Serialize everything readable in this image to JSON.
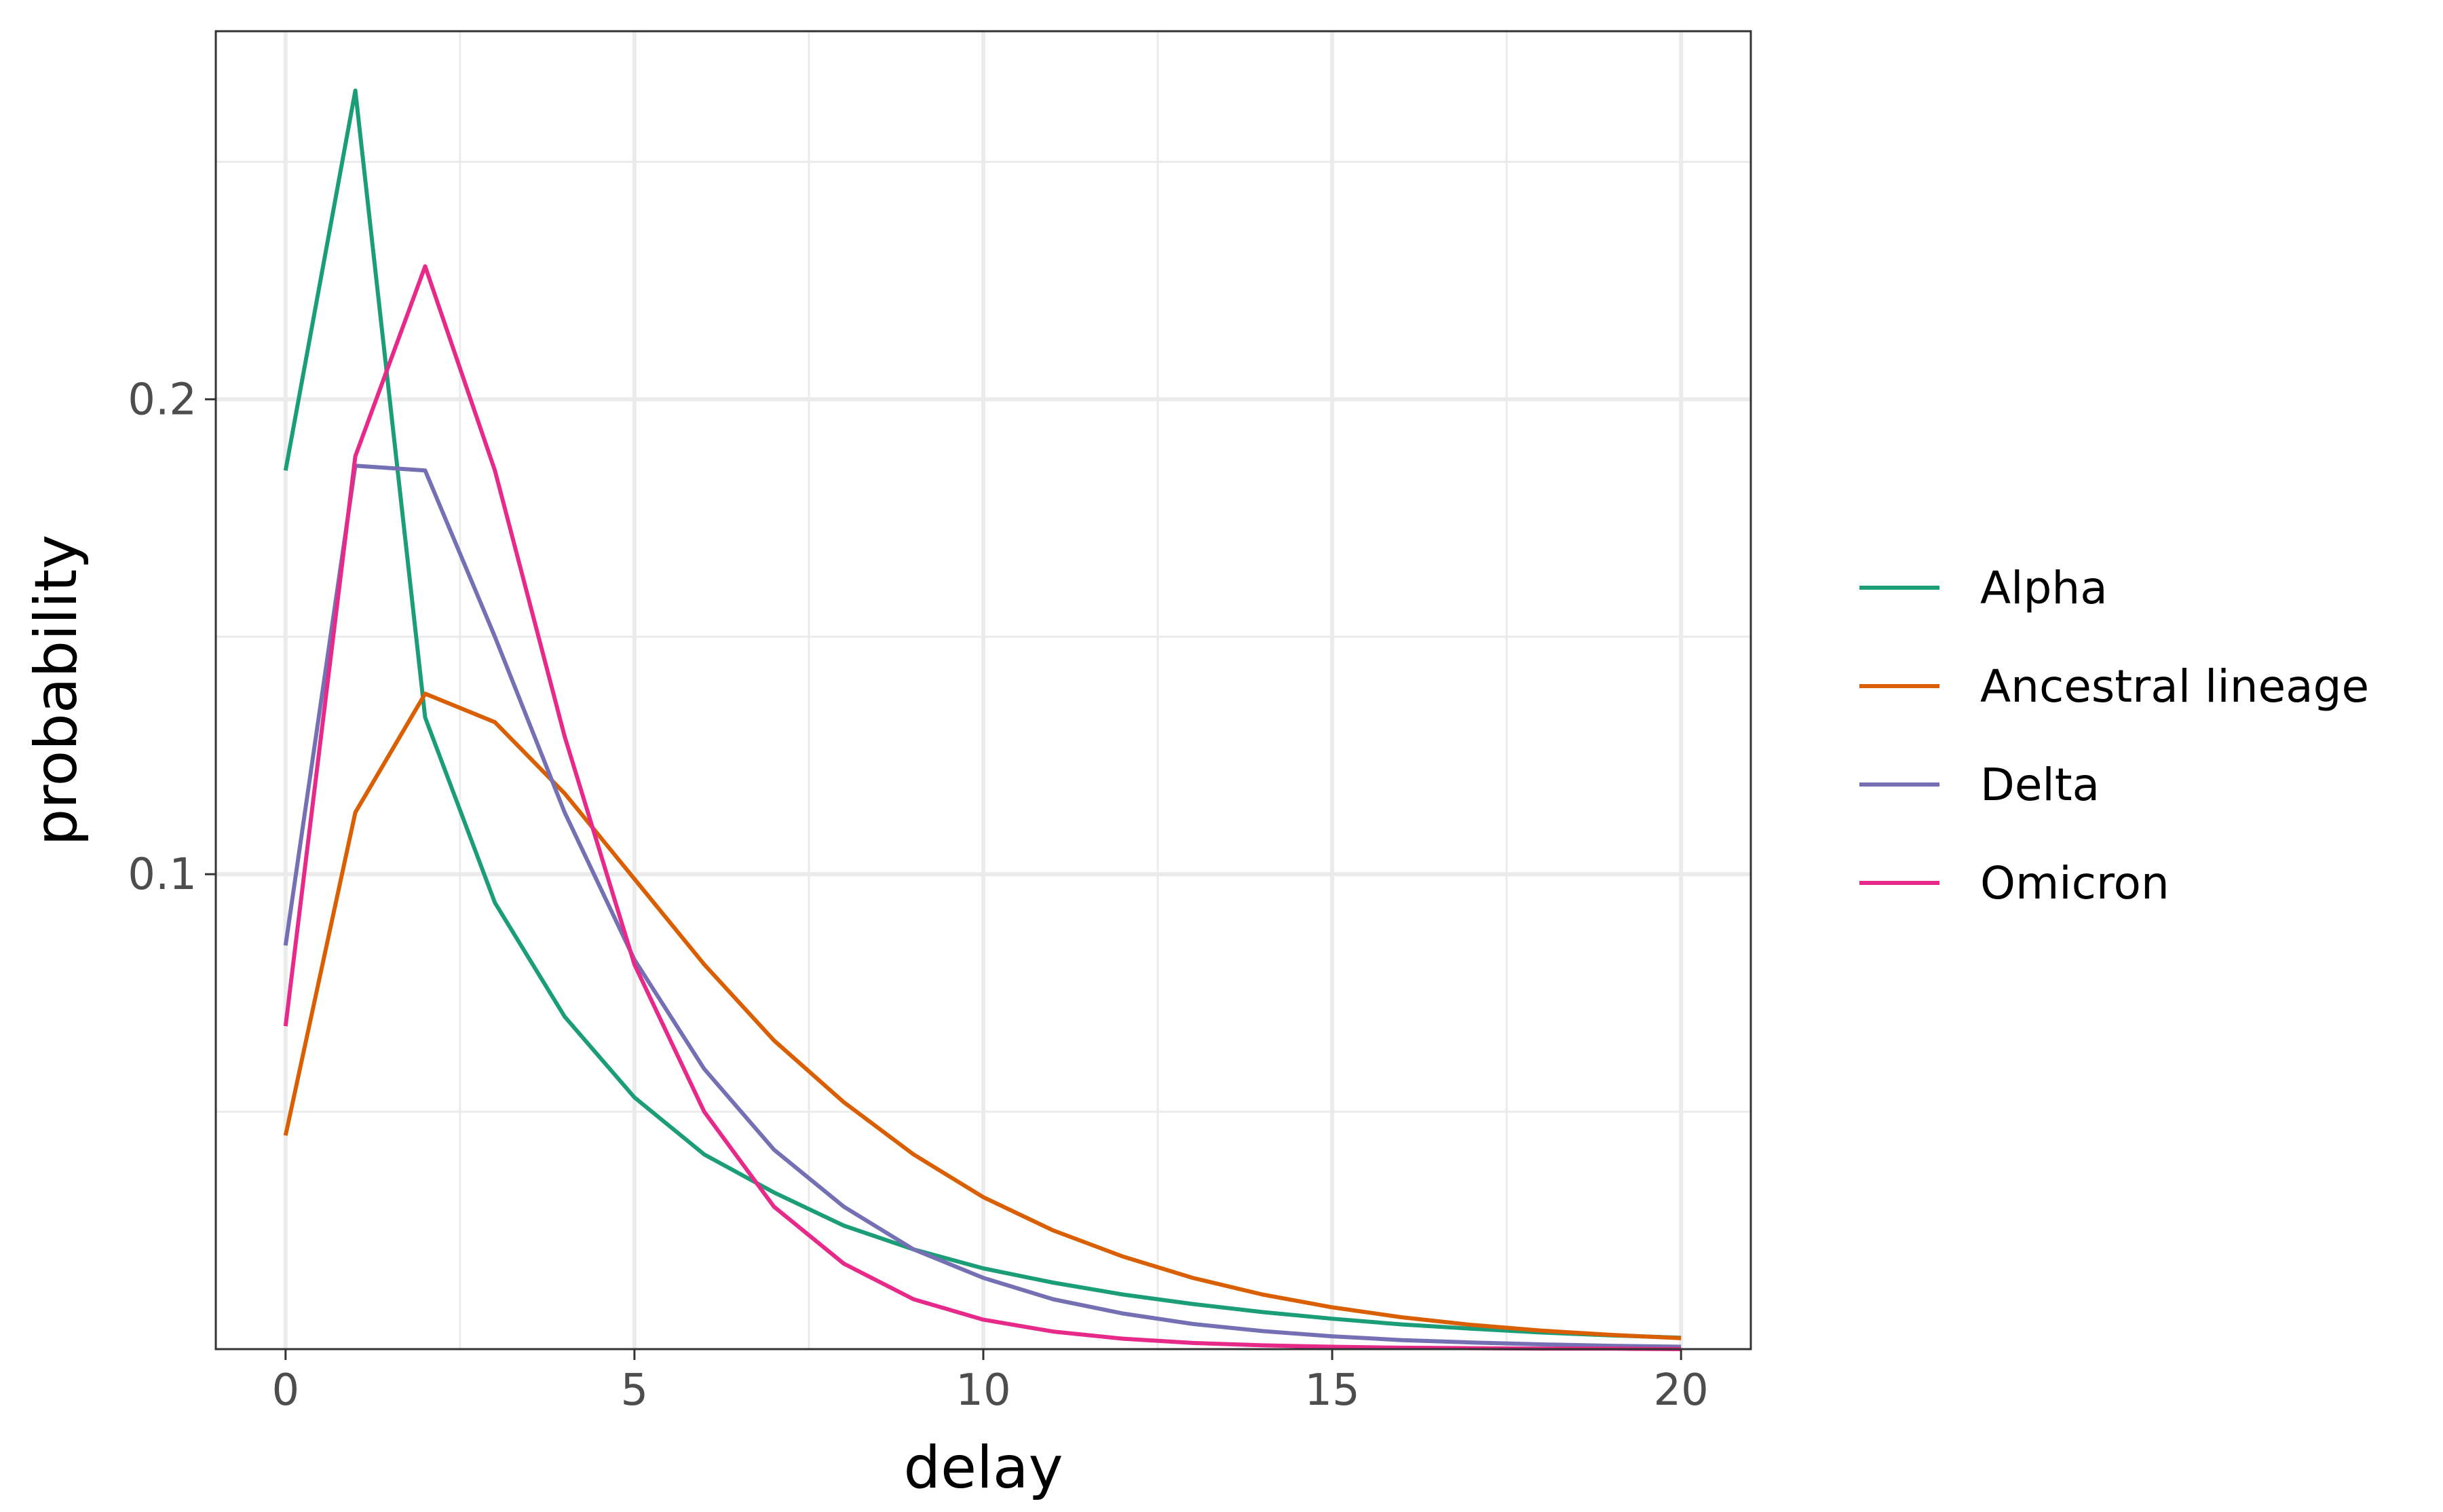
{
  "chart_data": {
    "type": "line",
    "title": "",
    "xlabel": "delay",
    "ylabel": "probability",
    "xlim": [
      -1,
      21
    ],
    "ylim": [
      0.0,
      0.2775
    ],
    "grid": true,
    "legend_position": "right",
    "x_ticks": [
      {
        "value": 0,
        "label": "0"
      },
      {
        "value": 5,
        "label": "5"
      },
      {
        "value": 10,
        "label": "10"
      },
      {
        "value": 15,
        "label": "15"
      },
      {
        "value": 20,
        "label": "20"
      }
    ],
    "y_ticks": [
      {
        "value": 0.1,
        "label": "0.1"
      },
      {
        "value": 0.2,
        "label": "0.2"
      }
    ],
    "x": [
      0,
      1,
      2,
      3,
      4,
      5,
      6,
      7,
      8,
      9,
      10,
      11,
      12,
      13,
      14,
      15,
      16,
      17,
      18,
      19,
      20
    ],
    "series": [
      {
        "name": "Alpha",
        "color": "#1b9e77",
        "values": [
          0.185,
          0.265,
          0.133,
          0.094,
          0.07,
          0.053,
          0.041,
          0.033,
          0.026,
          0.021,
          0.017,
          0.014,
          0.0115,
          0.0095,
          0.0078,
          0.0064,
          0.0052,
          0.0043,
          0.0035,
          0.0029,
          0.0024
        ]
      },
      {
        "name": "Ancestral lineage",
        "color": "#d95f02",
        "values": [
          0.045,
          0.113,
          0.138,
          0.132,
          0.117,
          0.099,
          0.081,
          0.065,
          0.052,
          0.041,
          0.032,
          0.025,
          0.0195,
          0.015,
          0.0115,
          0.0088,
          0.0067,
          0.0051,
          0.0039,
          0.003,
          0.0023
        ]
      },
      {
        "name": "Delta",
        "color": "#7570b3",
        "values": [
          0.085,
          0.186,
          0.185,
          0.15,
          0.113,
          0.082,
          0.059,
          0.042,
          0.03,
          0.021,
          0.015,
          0.0105,
          0.0075,
          0.0053,
          0.0038,
          0.0027,
          0.0019,
          0.0014,
          0.001,
          0.0007,
          0.0005
        ]
      },
      {
        "name": "Omicron",
        "color": "#e7298a",
        "values": [
          0.068,
          0.188,
          0.228,
          0.185,
          0.129,
          0.081,
          0.05,
          0.03,
          0.018,
          0.0105,
          0.0062,
          0.0037,
          0.0022,
          0.0013,
          0.0008,
          0.0005,
          0.0003,
          0.0002,
          0.0001,
          0.0001,
          0.0
        ]
      }
    ]
  }
}
